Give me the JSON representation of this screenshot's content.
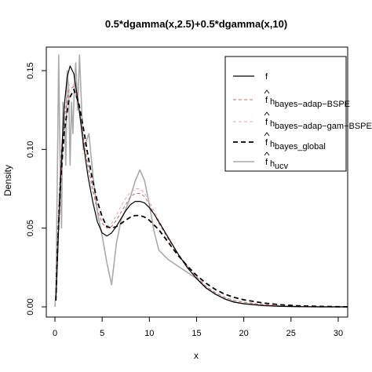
{
  "chart_data": {
    "type": "line",
    "title": "0.5*dgamma(x,2.5)+0.5*dgamma(x,10)",
    "xlabel": "x",
    "ylabel": "Density",
    "xlim": [
      0,
      31
    ],
    "ylim": [
      0,
      0.155
    ],
    "x_ticks": [
      0,
      5,
      10,
      15,
      20,
      25,
      30
    ],
    "y_ticks": [
      0.0,
      0.05,
      0.1,
      0.15
    ],
    "x_tick_labels": [
      "0",
      "5",
      "10",
      "15",
      "20",
      "25",
      "30"
    ],
    "y_tick_labels": [
      "0.00",
      "0.05",
      "0.10",
      "0.15"
    ],
    "grid": false,
    "legend_position": "top-right",
    "series": [
      {
        "name": "f",
        "legend_main": "f",
        "legend_sub": "",
        "hat": false,
        "color": "#000000",
        "dash": "",
        "width": 1.2,
        "x": [
          0.1,
          0.3,
          0.5,
          0.8,
          1.0,
          1.3,
          1.6,
          2.0,
          2.5,
          3.0,
          3.5,
          4.0,
          4.5,
          5.0,
          5.5,
          6.0,
          6.5,
          7.0,
          7.5,
          8.0,
          8.5,
          9.0,
          9.5,
          10.0,
          10.5,
          11.0,
          12.0,
          13.0,
          14.0,
          15.0,
          16.0,
          17.0,
          18.0,
          19.0,
          20.0,
          22.0,
          24.0,
          26.0,
          28.0,
          31.0
        ],
        "y": [
          0.004,
          0.035,
          0.068,
          0.107,
          0.128,
          0.146,
          0.153,
          0.148,
          0.128,
          0.104,
          0.083,
          0.067,
          0.054,
          0.047,
          0.045,
          0.047,
          0.051,
          0.056,
          0.061,
          0.065,
          0.067,
          0.067,
          0.066,
          0.063,
          0.059,
          0.054,
          0.044,
          0.034,
          0.025,
          0.018,
          0.012,
          0.008,
          0.005,
          0.003,
          0.002,
          0.0008,
          0.0003,
          0.0001,
          0.0,
          0.0
        ]
      },
      {
        "name": "f hat h bayes-adap-BSPE",
        "legend_main": "f",
        "legend_sub": "bayes−adap−BSPE",
        "hat": true,
        "color": "#b07070",
        "dash": "4,3",
        "width": 1.0,
        "x": [
          0.1,
          0.3,
          0.6,
          1.0,
          1.5,
          2.0,
          2.5,
          3.0,
          3.5,
          4.0,
          4.5,
          5.0,
          5.5,
          6.0,
          6.5,
          7.0,
          7.5,
          8.0,
          8.5,
          9.0,
          9.5,
          10.0,
          10.5,
          11.0,
          12.0,
          13.0,
          14.0,
          15.0,
          16.0,
          17.0,
          18.0,
          19.0,
          20.0,
          22.0,
          24.0,
          26.0,
          28.0,
          31.0
        ],
        "y": [
          0.004,
          0.045,
          0.09,
          0.12,
          0.138,
          0.14,
          0.128,
          0.108,
          0.09,
          0.075,
          0.062,
          0.053,
          0.05,
          0.051,
          0.055,
          0.06,
          0.065,
          0.07,
          0.072,
          0.072,
          0.07,
          0.065,
          0.059,
          0.053,
          0.043,
          0.034,
          0.026,
          0.019,
          0.013,
          0.009,
          0.006,
          0.004,
          0.003,
          0.0015,
          0.0007,
          0.0003,
          0.0001,
          0.0
        ]
      },
      {
        "name": "f hat h bayes-adap-gam-BSPE",
        "legend_main": "f",
        "legend_sub": "bayes−adap−gam−BSPE",
        "hat": true,
        "color": "#e6a8b8",
        "dash": "4,3",
        "width": 1.0,
        "x": [
          0.1,
          0.3,
          0.6,
          1.0,
          1.5,
          2.0,
          2.5,
          3.0,
          3.5,
          4.0,
          4.5,
          5.0,
          5.5,
          6.0,
          6.5,
          7.0,
          7.5,
          8.0,
          8.5,
          9.0,
          9.5,
          10.0,
          10.5,
          11.0,
          12.0,
          13.0,
          14.0,
          15.0,
          16.0,
          17.0,
          18.0,
          19.0,
          20.0,
          22.0,
          24.0,
          26.0,
          28.0,
          31.0
        ],
        "y": [
          0.004,
          0.048,
          0.095,
          0.124,
          0.141,
          0.141,
          0.127,
          0.107,
          0.088,
          0.073,
          0.061,
          0.053,
          0.051,
          0.053,
          0.058,
          0.064,
          0.069,
          0.073,
          0.075,
          0.075,
          0.072,
          0.067,
          0.061,
          0.055,
          0.044,
          0.034,
          0.026,
          0.019,
          0.013,
          0.009,
          0.006,
          0.004,
          0.003,
          0.0015,
          0.0007,
          0.0003,
          0.0001,
          0.0
        ]
      },
      {
        "name": "f hat h bayes_global",
        "legend_main": "f",
        "legend_sub": "bayes_global",
        "hat": true,
        "color": "#000000",
        "dash": "6,4",
        "width": 1.8,
        "x": [
          0.1,
          0.3,
          0.6,
          1.0,
          1.5,
          2.0,
          2.5,
          3.0,
          3.5,
          4.0,
          4.5,
          5.0,
          5.5,
          6.0,
          6.5,
          7.0,
          7.5,
          8.0,
          8.5,
          9.0,
          9.5,
          10.0,
          10.5,
          11.0,
          12.0,
          13.0,
          14.0,
          15.0,
          16.0,
          17.0,
          18.0,
          19.0,
          20.0,
          21.0,
          22.0,
          24.0,
          26.0,
          28.0,
          31.0
        ],
        "y": [
          0.004,
          0.04,
          0.08,
          0.112,
          0.132,
          0.138,
          0.13,
          0.114,
          0.096,
          0.08,
          0.067,
          0.057,
          0.051,
          0.05,
          0.051,
          0.053,
          0.055,
          0.057,
          0.058,
          0.058,
          0.057,
          0.055,
          0.052,
          0.049,
          0.041,
          0.033,
          0.026,
          0.02,
          0.015,
          0.011,
          0.008,
          0.006,
          0.0045,
          0.0035,
          0.0025,
          0.0013,
          0.0006,
          0.0003,
          0.0
        ]
      },
      {
        "name": "f hat h ucv",
        "legend_main": "f",
        "legend_sub": "ucv",
        "hat": true,
        "color": "#aaaaaa",
        "dash": "",
        "width": 1.6,
        "x": [
          0.0,
          0.1,
          0.25,
          0.4,
          0.55,
          0.7,
          0.85,
          1.0,
          1.15,
          1.3,
          1.45,
          1.6,
          1.75,
          1.9,
          2.05,
          2.2,
          2.4,
          2.6,
          2.8,
          3.0,
          3.3,
          3.6,
          4.0,
          4.5,
          5.0,
          5.5,
          6.0,
          6.5,
          7.0,
          7.5,
          8.0,
          8.5,
          9.0,
          9.5,
          10.0,
          10.5,
          11.0,
          12.0,
          13.0,
          14.0,
          15.0,
          16.0,
          17.0,
          18.0,
          19.0,
          20.0,
          22.0,
          24.0,
          26.0,
          28.0,
          31.0
        ],
        "y": [
          0.0,
          0.01,
          0.08,
          0.16,
          0.09,
          0.05,
          0.13,
          0.12,
          0.09,
          0.15,
          0.14,
          0.09,
          0.13,
          0.11,
          0.14,
          0.155,
          0.125,
          0.16,
          0.13,
          0.1,
          0.105,
          0.11,
          0.085,
          0.06,
          0.045,
          0.028,
          0.014,
          0.04,
          0.055,
          0.062,
          0.07,
          0.08,
          0.087,
          0.08,
          0.065,
          0.048,
          0.036,
          0.03,
          0.026,
          0.022,
          0.018,
          0.012,
          0.008,
          0.005,
          0.003,
          0.002,
          0.001,
          0.0004,
          0.0002,
          0.0,
          0.0
        ]
      }
    ]
  }
}
